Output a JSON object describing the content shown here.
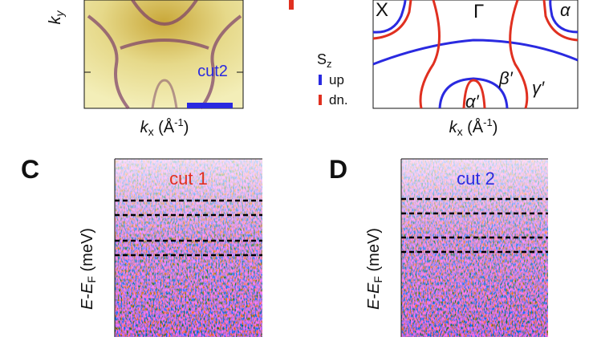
{
  "panel_a": {
    "y_label": [
      "k",
      "y"
    ],
    "cut_label": "cut2",
    "x_label": [
      "k",
      "x",
      " (Å",
      "-1",
      ")"
    ]
  },
  "legend": {
    "title": [
      "S",
      "z"
    ],
    "items": [
      "up",
      "dn."
    ]
  },
  "panel_b": {
    "labels": [
      "X",
      "Γ",
      "α",
      "β′",
      "γ′",
      "α′"
    ],
    "x_label": [
      "k",
      "x",
      " (Å",
      "-1",
      ")"
    ]
  },
  "panel_c": {
    "letter": "C",
    "cut_label": "cut 1",
    "y_label": [
      "E",
      "-",
      "E",
      "F",
      " (meV)"
    ]
  },
  "panel_d": {
    "letter": "D",
    "cut_label": "cut 2",
    "y_label": [
      "E",
      "-",
      "E",
      "F",
      " (meV)"
    ]
  }
}
